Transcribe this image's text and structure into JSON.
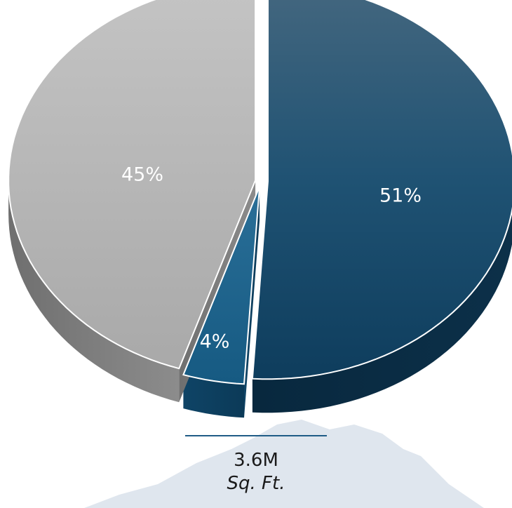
{
  "chart_data": {
    "type": "pie",
    "slices": [
      {
        "label": "51%",
        "value": 51,
        "color": "#1b5278"
      },
      {
        "label": "4%",
        "value": 4,
        "color": "#1f6690"
      },
      {
        "label": "45%",
        "value": 45,
        "color": "#b5b5b5"
      }
    ],
    "title": "",
    "legend": "none"
  },
  "total": {
    "value": "3.6M",
    "unit": "Sq. Ft."
  },
  "colors": {
    "accent": "#1f5c86",
    "mountain": "#dfe6ee"
  }
}
